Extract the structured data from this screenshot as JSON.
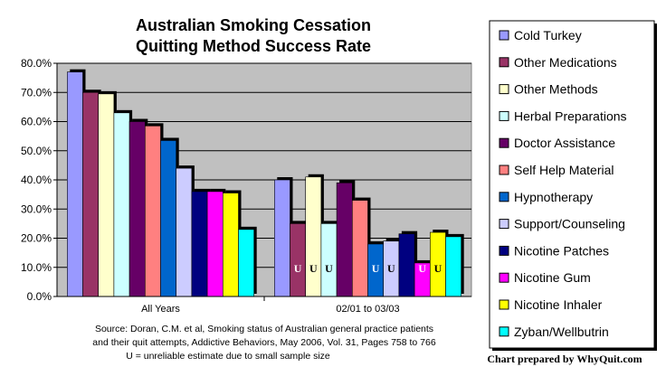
{
  "chart_data": {
    "type": "bar",
    "title": "Australian Smoking Cessation",
    "subtitle": "Quitting Method Success Rate",
    "categories": [
      "All Years",
      "02/01 to 03/03"
    ],
    "y_ticks": [
      "0.0%",
      "10.0%",
      "20.0%",
      "30.0%",
      "40.0%",
      "50.0%",
      "60.0%",
      "70.0%",
      "80.0%"
    ],
    "ylim": [
      0,
      80
    ],
    "unreliable_marker": "U",
    "series": [
      {
        "name": "Cold Turkey",
        "color": "#9999FF",
        "values": [
          77,
          40
        ],
        "unreliable": [
          false,
          false
        ]
      },
      {
        "name": "Other Medications",
        "color": "#993366",
        "values": [
          70,
          25
        ],
        "unreliable": [
          false,
          true
        ]
      },
      {
        "name": "Other Methods",
        "color": "#FFFFCC",
        "values": [
          69.5,
          41
        ],
        "unreliable": [
          false,
          true
        ]
      },
      {
        "name": "Herbal Preparations",
        "color": "#CCFFFF",
        "values": [
          63,
          25
        ],
        "unreliable": [
          false,
          true
        ]
      },
      {
        "name": "Doctor Assistance",
        "color": "#660066",
        "values": [
          60,
          39
        ],
        "unreliable": [
          false,
          false
        ]
      },
      {
        "name": "Self Help Material",
        "color": "#FF8080",
        "values": [
          58.5,
          33
        ],
        "unreliable": [
          false,
          false
        ]
      },
      {
        "name": "Hypnotherapy",
        "color": "#0066CC",
        "values": [
          53.5,
          18
        ],
        "unreliable": [
          false,
          true
        ]
      },
      {
        "name": "Support/Counseling",
        "color": "#CCCCFF",
        "values": [
          44,
          19
        ],
        "unreliable": [
          false,
          true
        ]
      },
      {
        "name": "Nicotine Patches",
        "color": "#000080",
        "values": [
          36,
          21.5
        ],
        "unreliable": [
          false,
          false
        ]
      },
      {
        "name": "Nicotine Gum",
        "color": "#FF00FF",
        "values": [
          36,
          11.5
        ],
        "unreliable": [
          false,
          true
        ]
      },
      {
        "name": "Nicotine Inhaler",
        "color": "#FFFF00",
        "values": [
          35.5,
          22
        ],
        "unreliable": [
          false,
          true
        ]
      },
      {
        "name": "Zyban/Wellbutrin",
        "color": "#00FFFF",
        "values": [
          23,
          20.5
        ],
        "unreliable": [
          false,
          false
        ]
      }
    ]
  },
  "source": {
    "line1": "Source:  Doran, C.M. et al, Smoking status of Australian general practice patients",
    "line2": "and their quit attempts,  Addictive Behaviors, May 2006, Vol. 31,  Pages 758 to 766",
    "line3": "U = unreliable estimate due to small sample size"
  },
  "credit": "Chart prepared by WhyQuit.com",
  "colors": {
    "plot_bg": "#C0C0C0",
    "gridline": "#000000",
    "bar_outline": "#000000",
    "shadow": "#000000"
  }
}
